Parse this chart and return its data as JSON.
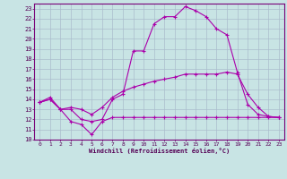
{
  "xlabel": "Windchill (Refroidissement éolien,°C)",
  "background_color": "#c8e4e4",
  "grid_color": "#aabccc",
  "line_color": "#aa00aa",
  "xlim": [
    -0.5,
    23.5
  ],
  "ylim": [
    10,
    23.5
  ],
  "xticks": [
    0,
    1,
    2,
    3,
    4,
    5,
    6,
    7,
    8,
    9,
    10,
    11,
    12,
    13,
    14,
    15,
    16,
    17,
    18,
    19,
    20,
    21,
    22,
    23
  ],
  "yticks": [
    10,
    11,
    12,
    13,
    14,
    15,
    16,
    17,
    18,
    19,
    20,
    21,
    22,
    23
  ],
  "series1_x": [
    0,
    1,
    2,
    3,
    4,
    5,
    6,
    7,
    8,
    9,
    10,
    11,
    12,
    13,
    14,
    15,
    16,
    17,
    18,
    19,
    20,
    21,
    22,
    23
  ],
  "series1_y": [
    13.7,
    14.0,
    13.0,
    11.8,
    11.5,
    10.5,
    11.8,
    12.2,
    12.2,
    12.2,
    12.2,
    12.2,
    12.2,
    12.2,
    12.2,
    12.2,
    12.2,
    12.2,
    12.2,
    12.2,
    12.2,
    12.2,
    12.2,
    12.2
  ],
  "series2_x": [
    0,
    1,
    2,
    3,
    4,
    5,
    6,
    7,
    8,
    9,
    10,
    11,
    12,
    13,
    14,
    15,
    16,
    17,
    18,
    19,
    20,
    21,
    22,
    23
  ],
  "series2_y": [
    13.7,
    14.0,
    13.0,
    13.0,
    12.0,
    11.8,
    12.0,
    14.0,
    14.5,
    18.8,
    18.8,
    21.5,
    22.2,
    22.2,
    23.2,
    22.8,
    22.2,
    21.0,
    20.4,
    16.7,
    13.5,
    12.5,
    12.3,
    12.2
  ],
  "series3_x": [
    0,
    1,
    2,
    3,
    4,
    5,
    6,
    7,
    8,
    9,
    10,
    11,
    12,
    13,
    14,
    15,
    16,
    17,
    18,
    19,
    20,
    21,
    22,
    23
  ],
  "series3_y": [
    13.7,
    14.2,
    13.0,
    13.2,
    13.0,
    12.5,
    13.2,
    14.2,
    14.8,
    15.2,
    15.5,
    15.8,
    16.0,
    16.2,
    16.5,
    16.5,
    16.5,
    16.5,
    16.7,
    16.5,
    14.5,
    13.2,
    12.3,
    12.2
  ]
}
